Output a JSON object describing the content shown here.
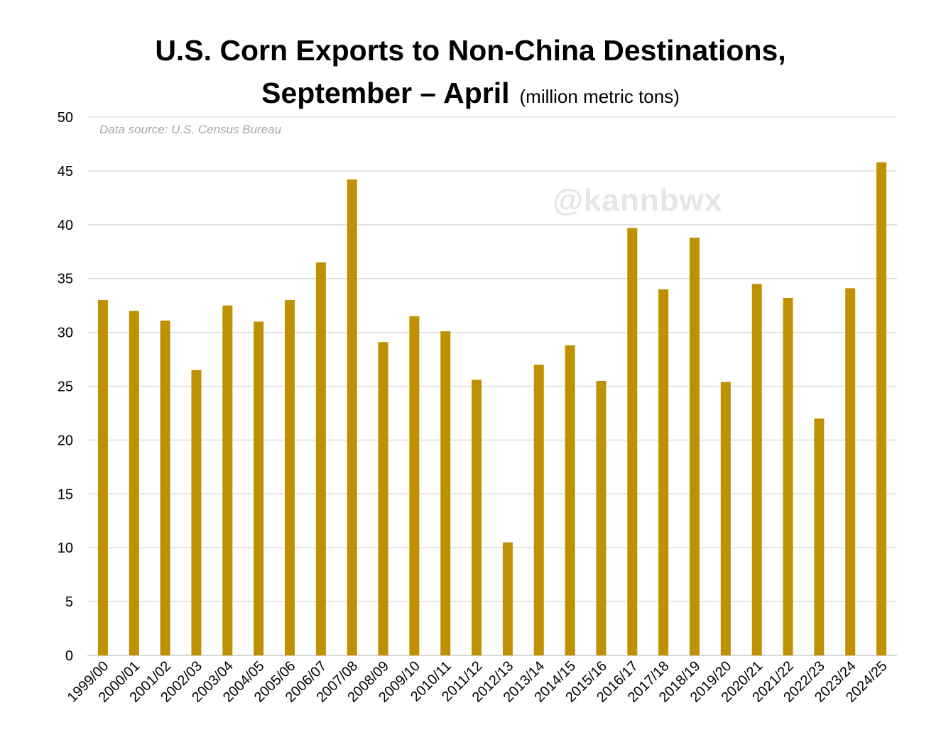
{
  "chart_data": {
    "type": "bar",
    "title": "U.S. Corn Exports to Non-China Destinations,",
    "title_line2": "September – April",
    "unit": "(million metric tons)",
    "source_note": "Data source: U.S. Census Bureau",
    "watermark": "@kannbwx",
    "ylim": [
      0,
      50
    ],
    "yticks": [
      0,
      5,
      10,
      15,
      20,
      25,
      30,
      35,
      40,
      45,
      50
    ],
    "grid": true,
    "bar_color": "#BF9000",
    "categories": [
      "1999/00",
      "2000/01",
      "2001/02",
      "2002/03",
      "2003/04",
      "2004/05",
      "2005/06",
      "2006/07",
      "2007/08",
      "2008/09",
      "2009/10",
      "2010/11",
      "2011/12",
      "2012/13",
      "2013/14",
      "2014/15",
      "2015/16",
      "2016/17",
      "2017/18",
      "2018/19",
      "2019/20",
      "2020/21",
      "2021/22",
      "2022/23",
      "2023/24",
      "2024/25"
    ],
    "values": [
      33.0,
      32.0,
      31.1,
      26.5,
      32.5,
      31.0,
      33.0,
      36.5,
      44.2,
      29.1,
      31.5,
      30.1,
      25.6,
      10.5,
      27.0,
      28.8,
      25.5,
      39.7,
      34.0,
      38.8,
      25.4,
      34.5,
      33.2,
      22.0,
      34.1,
      45.8
    ]
  }
}
